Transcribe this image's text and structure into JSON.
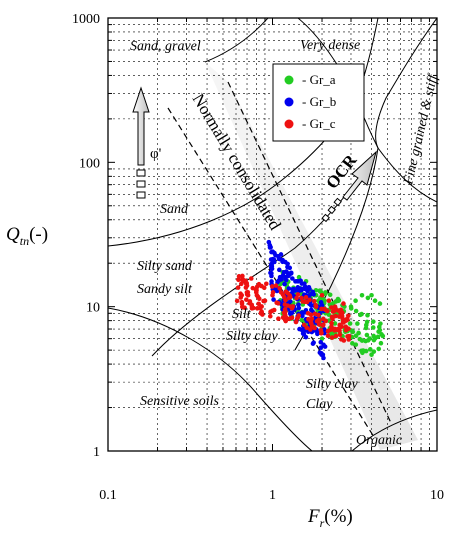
{
  "chart_data": {
    "type": "scatter",
    "xlabel_main": "F",
    "xlabel_sub": "r",
    "xlabel_unit": "(%)",
    "ylabel_main": "Q",
    "ylabel_sub": "tn",
    "ylabel_unit": "(-)",
    "x_scale": "log",
    "y_scale": "log",
    "xlim": [
      0.1,
      10
    ],
    "ylim": [
      1,
      1000
    ],
    "x_ticks": [
      "0.1",
      "1",
      "10"
    ],
    "y_ticks": [
      "1",
      "10",
      "100",
      "1000"
    ],
    "legend_position": "top-right",
    "series": [
      {
        "name": "- Gr_a",
        "color": "#22cc22",
        "cloud": {
          "x_range": [
            1.1,
            4.7
          ],
          "y_range": [
            5,
            18
          ]
        },
        "points": [
          [
            1.45,
            16
          ],
          [
            1.6,
            15
          ],
          [
            1.7,
            13
          ],
          [
            1.8,
            12
          ],
          [
            1.9,
            11
          ],
          [
            2.0,
            10
          ],
          [
            2.1,
            9
          ],
          [
            2.2,
            8
          ],
          [
            2.3,
            7
          ],
          [
            2.4,
            6.5
          ],
          [
            2.5,
            9
          ],
          [
            2.0,
            6
          ],
          [
            1.7,
            7.5
          ],
          [
            3.5,
            12
          ],
          [
            3.8,
            11.5
          ],
          [
            4.0,
            12
          ],
          [
            4.2,
            11
          ],
          [
            4.5,
            10.5
          ],
          [
            3.2,
            11
          ],
          [
            3.0,
            10
          ]
        ]
      },
      {
        "name": "- Gr_b",
        "color": "#0000ee",
        "cloud": {
          "x_range": [
            0.95,
            2.1
          ],
          "y_range": [
            5.5,
            29
          ]
        },
        "points": [
          [
            0.95,
            28
          ],
          [
            1.0,
            24
          ],
          [
            1.1,
            18
          ],
          [
            1.2,
            16
          ],
          [
            1.3,
            17
          ],
          [
            1.4,
            15
          ],
          [
            1.5,
            13
          ],
          [
            1.6,
            12
          ],
          [
            1.7,
            11
          ],
          [
            1.5,
            9
          ],
          [
            1.4,
            8
          ],
          [
            1.6,
            7
          ],
          [
            1.8,
            8
          ],
          [
            1.35,
            10
          ],
          [
            1.25,
            12
          ],
          [
            1.9,
            10
          ]
        ]
      },
      {
        "name": "- Gr_c",
        "color": "#ee1111",
        "cloud": {
          "x_range": [
            0.6,
            3.0
          ],
          "y_range": [
            6.5,
            17
          ]
        },
        "points": [
          [
            0.65,
            12
          ],
          [
            0.7,
            14
          ],
          [
            0.8,
            13
          ],
          [
            0.9,
            11
          ],
          [
            1.0,
            12
          ],
          [
            0.75,
            10
          ],
          [
            0.85,
            9
          ],
          [
            1.05,
            14
          ],
          [
            2.0,
            12
          ],
          [
            2.2,
            11
          ],
          [
            2.4,
            10
          ],
          [
            2.6,
            9
          ],
          [
            2.8,
            8
          ],
          [
            2.5,
            7
          ],
          [
            2.3,
            8.5
          ],
          [
            2.1,
            9.5
          ],
          [
            2.7,
            10.5
          ]
        ]
      }
    ],
    "zone_labels": [
      "Sand, gravel",
      "Very dense",
      "Sand",
      "Silty sand",
      "Sandy silt",
      "Silt",
      "Silty clay",
      "Silty clay",
      "Clay",
      "Sensitive soils",
      "Organic",
      "Fine grained & stiff"
    ],
    "annotations": {
      "band_label": "Normally consolidated",
      "ocr_label": "OCR",
      "phi_label": "φ'"
    }
  }
}
